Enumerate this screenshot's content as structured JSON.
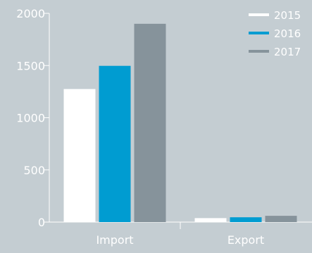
{
  "chart_data": {
    "type": "bar",
    "categories": [
      "Import",
      "Export"
    ],
    "series": [
      {
        "name": "2015",
        "values": [
          1275,
          38
        ]
      },
      {
        "name": "2016",
        "values": [
          1497,
          46
        ]
      },
      {
        "name": "2017",
        "values": [
          1900,
          60
        ]
      }
    ],
    "ylim": [
      0,
      2000
    ],
    "yticks": [
      0,
      500,
      1000,
      1500,
      2000
    ],
    "grid": false,
    "legend_position": "top-right",
    "colors": {
      "background": "#c4cdd2",
      "axis": "#ffffff",
      "series": [
        "#ffffff",
        "#009cd1",
        "#86939b"
      ]
    }
  }
}
